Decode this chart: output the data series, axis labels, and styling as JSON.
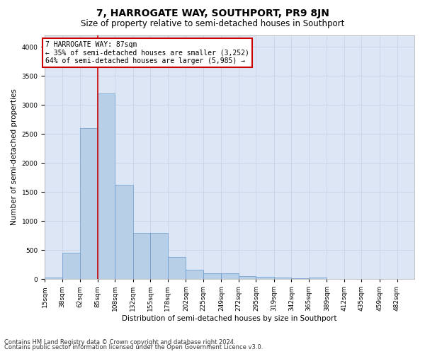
{
  "title": "7, HARROGATE WAY, SOUTHPORT, PR9 8JN",
  "subtitle": "Size of property relative to semi-detached houses in Southport",
  "xlabel": "Distribution of semi-detached houses by size in Southport",
  "ylabel": "Number of semi-detached properties",
  "footer_line1": "Contains HM Land Registry data © Crown copyright and database right 2024.",
  "footer_line2": "Contains public sector information licensed under the Open Government Licence v3.0.",
  "property_label": "7 HARROGATE WAY: 87sqm",
  "pct_smaller": 35,
  "count_smaller": 3252,
  "pct_larger": 64,
  "count_larger": 5985,
  "bin_labels": [
    "15sqm",
    "38sqm",
    "62sqm",
    "85sqm",
    "108sqm",
    "132sqm",
    "155sqm",
    "178sqm",
    "202sqm",
    "225sqm",
    "249sqm",
    "272sqm",
    "295sqm",
    "319sqm",
    "342sqm",
    "365sqm",
    "389sqm",
    "412sqm",
    "435sqm",
    "459sqm",
    "482sqm"
  ],
  "bin_edges": [
    15,
    38,
    62,
    85,
    108,
    132,
    155,
    178,
    202,
    225,
    249,
    272,
    295,
    319,
    342,
    365,
    389,
    412,
    435,
    459,
    482
  ],
  "bar_values": [
    30,
    450,
    2600,
    3200,
    1620,
    790,
    790,
    380,
    160,
    100,
    100,
    50,
    40,
    30,
    10,
    30,
    5,
    5,
    5,
    5,
    5
  ],
  "bar_color": "#b8cfe8",
  "bar_edge_color": "#6699cc",
  "vline_color": "#cc0000",
  "vline_x": 85,
  "annotation_box_edge_color": "#cc0000",
  "annotation_box_face_color": "#ffffff",
  "ylim": [
    0,
    4200
  ],
  "yticks": [
    0,
    500,
    1000,
    1500,
    2000,
    2500,
    3000,
    3500,
    4000
  ],
  "grid_color": "#c8d4e8",
  "background_color": "#dce6f5",
  "title_fontsize": 10,
  "subtitle_fontsize": 8.5,
  "axis_label_fontsize": 7.5,
  "tick_fontsize": 6.5,
  "footer_fontsize": 6
}
